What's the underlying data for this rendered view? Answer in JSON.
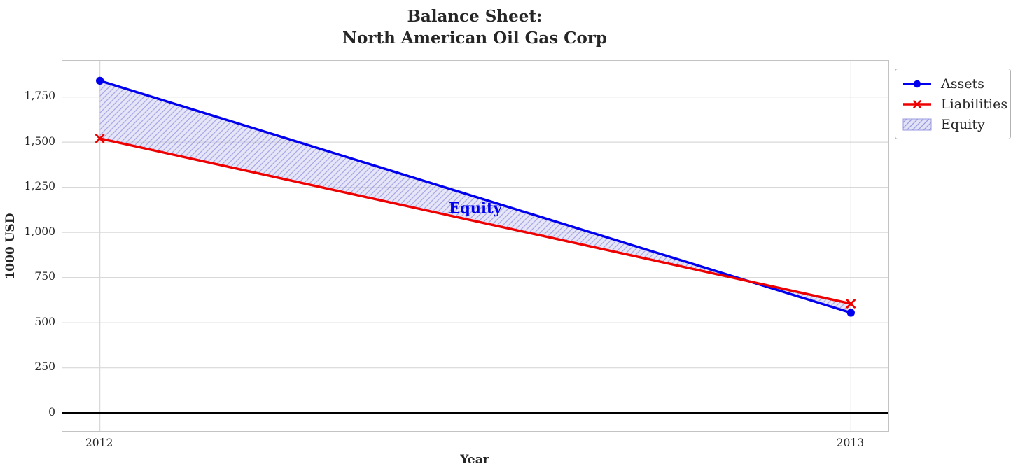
{
  "chart_data": {
    "type": "line",
    "title_lines": [
      "Balance Sheet:",
      "North American Oil Gas Corp"
    ],
    "title": "Balance Sheet:\nNorth American Oil Gas Corp",
    "xlabel": "Year",
    "ylabel": "1000 USD",
    "x": [
      2012,
      2013
    ],
    "series": [
      {
        "name": "Assets",
        "values": [
          1840,
          555
        ],
        "color": "#0000ee",
        "marker": "circle"
      },
      {
        "name": "Liabilities",
        "values": [
          1520,
          605
        ],
        "color": "#ee0000",
        "marker": "x"
      }
    ],
    "fill_between": {
      "label": "Equity",
      "annotation": {
        "text": "Equity",
        "x": 2012.5,
        "y": 1135
      },
      "face_color": "#c9c9f0",
      "hatch_color": "#6a6ad0",
      "hatch_style": "diagonal-forward"
    },
    "xlim": [
      2011.95,
      2013.05
    ],
    "ylim": [
      -100,
      1950
    ],
    "yticks": [
      0,
      250,
      500,
      750,
      1000,
      1250,
      1500,
      1750
    ],
    "ytick_labels": [
      "0",
      "250",
      "500",
      "750",
      "1,000",
      "1,250",
      "1,500",
      "1,750"
    ],
    "xticks": [
      2012,
      2013
    ],
    "xtick_labels": [
      "2012",
      "2013"
    ],
    "grid": true,
    "zero_line_color": "#000000",
    "legend": {
      "position": "outside-right-top",
      "items": [
        "Assets",
        "Liabilities",
        "Equity"
      ]
    }
  }
}
